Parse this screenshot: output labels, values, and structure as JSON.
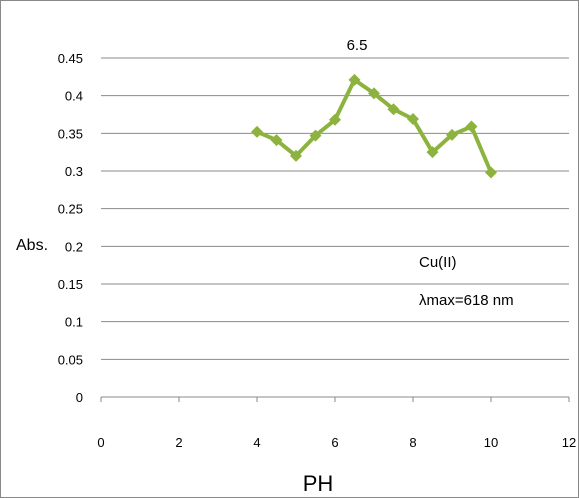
{
  "chart_data": {
    "type": "line",
    "title": "",
    "xlabel": "PH",
    "ylabel": "Abs.",
    "xlim": [
      0,
      12
    ],
    "ylim": [
      0,
      0.45
    ],
    "x_ticks": [
      "0",
      "2",
      "4",
      "6",
      "8",
      "10",
      "12"
    ],
    "y_ticks": [
      "0",
      "0.05",
      "0.1",
      "0.15",
      "0.2",
      "0.25",
      "0.3",
      "0.35",
      "0.4",
      "0.45"
    ],
    "grid": "horizontal",
    "legend": "none",
    "series": [
      {
        "color": "#8DB33F",
        "marker": "diamond",
        "points": [
          {
            "x": 4.0,
            "y": 0.352
          },
          {
            "x": 4.5,
            "y": 0.341
          },
          {
            "x": 5.0,
            "y": 0.32
          },
          {
            "x": 5.5,
            "y": 0.347
          },
          {
            "x": 6.0,
            "y": 0.368
          },
          {
            "x": 6.5,
            "y": 0.421
          },
          {
            "x": 7.0,
            "y": 0.403
          },
          {
            "x": 7.5,
            "y": 0.382
          },
          {
            "x": 8.0,
            "y": 0.369
          },
          {
            "x": 8.5,
            "y": 0.325
          },
          {
            "x": 9.0,
            "y": 0.348
          },
          {
            "x": 9.5,
            "y": 0.359
          },
          {
            "x": 10.0,
            "y": 0.298
          }
        ]
      }
    ],
    "annotations": {
      "peak_label": "6.5",
      "sample": "Cu(II)",
      "lambda_max": "λmax=618 nm"
    }
  }
}
